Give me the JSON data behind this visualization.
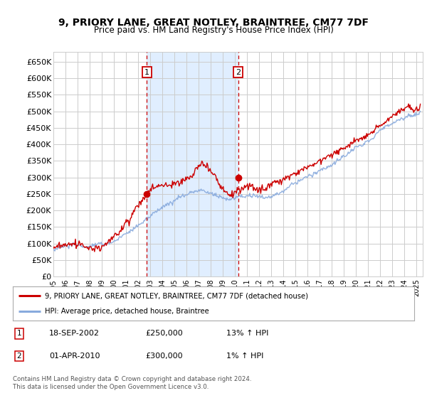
{
  "title": "9, PRIORY LANE, GREAT NOTLEY, BRAINTREE, CM77 7DF",
  "subtitle": "Price paid vs. HM Land Registry's House Price Index (HPI)",
  "ylabel_ticks": [
    "£0",
    "£50K",
    "£100K",
    "£150K",
    "£200K",
    "£250K",
    "£300K",
    "£350K",
    "£400K",
    "£450K",
    "£500K",
    "£550K",
    "£600K",
    "£650K"
  ],
  "ytick_values": [
    0,
    50000,
    100000,
    150000,
    200000,
    250000,
    300000,
    350000,
    400000,
    450000,
    500000,
    550000,
    600000,
    650000
  ],
  "ylim": [
    0,
    680000
  ],
  "xlim_start": 1995.0,
  "xlim_end": 2025.5,
  "sale1_date": 2002.72,
  "sale1_price": 250000,
  "sale2_date": 2010.25,
  "sale2_price": 300000,
  "legend_line1": "9, PRIORY LANE, GREAT NOTLEY, BRAINTREE, CM77 7DF (detached house)",
  "legend_line2": "HPI: Average price, detached house, Braintree",
  "table_row1": [
    "1",
    "18-SEP-2002",
    "£250,000",
    "13% ↑ HPI"
  ],
  "table_row2": [
    "2",
    "01-APR-2010",
    "£300,000",
    "1% ↑ HPI"
  ],
  "footnote": "Contains HM Land Registry data © Crown copyright and database right 2024.\nThis data is licensed under the Open Government Licence v3.0.",
  "bg_color": "#ffffff",
  "grid_color": "#cccccc",
  "line_color_property": "#cc0000",
  "line_color_hpi": "#88aadd",
  "shade_color": "#e0eeff",
  "marker_box_color": "#cc0000"
}
